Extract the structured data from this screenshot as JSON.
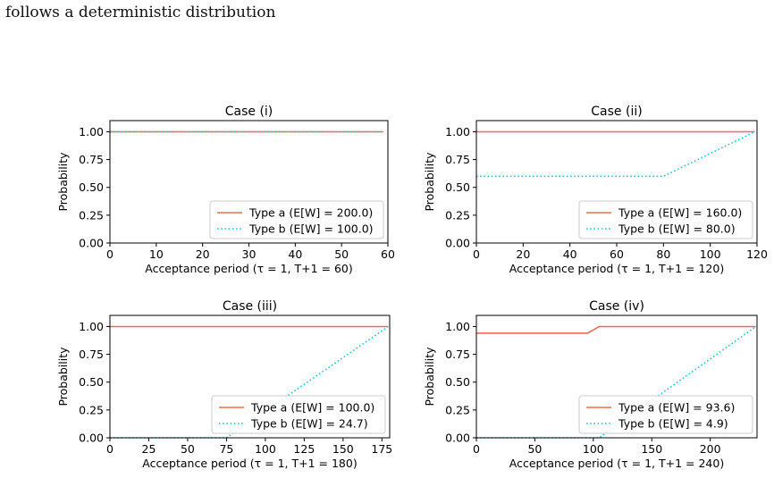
{
  "caption": "follows a deterministic distribution",
  "colors": {
    "type_a": "#f36b4f",
    "type_b": "#19c6e3"
  },
  "chart_data": [
    {
      "type": "line",
      "title": "Case (i)",
      "xlabel": "Acceptance period (τ = 1, T+1 = 60)",
      "ylabel": "Probability",
      "xlim": [
        0,
        60
      ],
      "ylim": [
        0,
        1.1
      ],
      "xticks": [
        0,
        10,
        20,
        30,
        40,
        50,
        60
      ],
      "yticks": [
        0.0,
        0.25,
        0.5,
        0.75,
        1.0
      ],
      "legend_position": "lower right",
      "series": [
        {
          "name": "Type a (E[W] = 200.0)",
          "style": "solid",
          "x": [
            0,
            59
          ],
          "y": [
            1.0,
            1.0
          ]
        },
        {
          "name": "Type b (E[W] = 100.0)",
          "style": "dotted",
          "x": [
            0,
            59
          ],
          "y": [
            1.0,
            1.0
          ]
        }
      ]
    },
    {
      "type": "line",
      "title": "Case (ii)",
      "xlabel": "Acceptance period (τ = 1, T+1 = 120)",
      "ylabel": "Probability",
      "xlim": [
        0,
        120
      ],
      "ylim": [
        0,
        1.1
      ],
      "xticks": [
        0,
        20,
        40,
        60,
        80,
        100,
        120
      ],
      "yticks": [
        0.0,
        0.25,
        0.5,
        0.75,
        1.0
      ],
      "legend_position": "lower right",
      "series": [
        {
          "name": "Type a (E[W] = 160.0)",
          "style": "solid",
          "x": [
            0,
            119
          ],
          "y": [
            1.0,
            1.0
          ]
        },
        {
          "name": "Type b (E[W] = 80.0)",
          "style": "dotted",
          "x": [
            0,
            80,
            119
          ],
          "y": [
            0.6,
            0.6,
            1.0
          ]
        }
      ]
    },
    {
      "type": "line",
      "title": "Case (iii)",
      "xlabel": "Acceptance period (τ = 1, T+1 = 180)",
      "ylabel": "Probability",
      "xlim": [
        0,
        180
      ],
      "ylim": [
        0,
        1.1
      ],
      "xticks": [
        0,
        25,
        50,
        75,
        100,
        125,
        150,
        175
      ],
      "yticks": [
        0.0,
        0.25,
        0.5,
        0.75,
        1.0
      ],
      "legend_position": "lower right",
      "series": [
        {
          "name": "Type a (E[W] = 100.0)",
          "style": "solid",
          "x": [
            0,
            179
          ],
          "y": [
            1.0,
            1.0
          ]
        },
        {
          "name": "Type b (E[W] = 24.7)",
          "style": "dotted",
          "x": [
            0,
            75,
            179
          ],
          "y": [
            0.0,
            0.0,
            1.0
          ]
        }
      ]
    },
    {
      "type": "line",
      "title": "Case (iv)",
      "xlabel": "Acceptance period (τ = 1, T+1 = 240)",
      "ylabel": "Probability",
      "xlim": [
        0,
        240
      ],
      "ylim": [
        0,
        1.1
      ],
      "xticks": [
        0,
        50,
        100,
        150,
        200
      ],
      "yticks": [
        0.0,
        0.25,
        0.5,
        0.75,
        1.0
      ],
      "legend_position": "lower right",
      "series": [
        {
          "name": "Type a (E[W] = 93.6)",
          "style": "solid",
          "x": [
            0,
            95,
            105,
            239
          ],
          "y": [
            0.94,
            0.94,
            1.0,
            1.0
          ]
        },
        {
          "name": "Type b (E[W] = 4.9)",
          "style": "dotted",
          "x": [
            0,
            105,
            239
          ],
          "y": [
            0.0,
            0.0,
            1.0
          ]
        }
      ]
    }
  ]
}
